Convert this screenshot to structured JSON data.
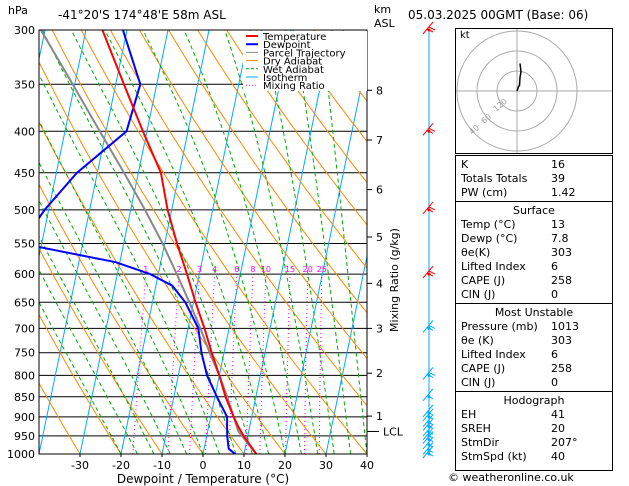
{
  "header": {
    "pressure_unit": "hPa",
    "location": "-41°20'S  174°48'E  58m  ASL",
    "height_unit": "km",
    "height_unit2": "ASL",
    "datetime": "05.03.2025  00GMT  (Base: 06)"
  },
  "legend": [
    {
      "label": "Temperature",
      "color": "#ff0000"
    },
    {
      "label": "Dewpoint",
      "color": "#0000ff"
    },
    {
      "label": "Parcel Trajectory",
      "color": "#888888"
    },
    {
      "label": "Dry Adiabat",
      "color": "#ff8800"
    },
    {
      "label": "Wet Adiabat",
      "color": "#00aa00"
    },
    {
      "label": "Isotherm",
      "color": "#00aaff"
    },
    {
      "label": "Mixing Ratio",
      "color": "#ff00ff"
    }
  ],
  "chart_data": {
    "type": "line",
    "title": "",
    "xlabel": "Dewpoint / Temperature (°C)",
    "ylabel": "hPa",
    "y2label": "Mixing Ratio (g/kg)",
    "xlim": [
      -40,
      40
    ],
    "ylim": [
      1000,
      300
    ],
    "x_ticks": [
      -30,
      -20,
      -10,
      0,
      10,
      20,
      30,
      40
    ],
    "pressure_levels": [
      300,
      350,
      400,
      450,
      500,
      550,
      600,
      650,
      700,
      750,
      800,
      850,
      900,
      950,
      1000
    ],
    "km_ticks": [
      {
        "label": "1",
        "p": 898
      },
      {
        "label": "2",
        "p": 795
      },
      {
        "label": "3",
        "p": 700
      },
      {
        "label": "4",
        "p": 616
      },
      {
        "label": "5",
        "p": 540
      },
      {
        "label": "6",
        "p": 472
      },
      {
        "label": "7",
        "p": 410
      },
      {
        "label": "8",
        "p": 356
      }
    ],
    "lcl": {
      "label": "LCL",
      "p": 938
    },
    "mixing_ratio_labels": [
      "1",
      "2",
      "3",
      "4",
      "6",
      "8",
      "10",
      "15",
      "20",
      "25"
    ],
    "mixing_ratio_values": [
      1,
      2,
      3,
      4,
      6,
      8,
      10,
      15,
      20,
      25
    ],
    "series": [
      {
        "name": "Temperature",
        "color": "#ff0000",
        "points": [
          [
            1000,
            13
          ],
          [
            975,
            11
          ],
          [
            950,
            9
          ],
          [
            925,
            7.2
          ],
          [
            900,
            5.6
          ],
          [
            850,
            2.6
          ],
          [
            800,
            0
          ],
          [
            750,
            -3
          ],
          [
            700,
            -6
          ],
          [
            650,
            -9.5
          ],
          [
            600,
            -13
          ],
          [
            550,
            -17
          ],
          [
            500,
            -21
          ],
          [
            450,
            -24.5
          ],
          [
            400,
            -31
          ],
          [
            350,
            -38
          ],
          [
            300,
            -46
          ]
        ]
      },
      {
        "name": "Dewpoint",
        "color": "#0000ff",
        "points": [
          [
            1000,
            7.8
          ],
          [
            985,
            6
          ],
          [
            950,
            5
          ],
          [
            925,
            4.5
          ],
          [
            900,
            4
          ],
          [
            850,
            0.5
          ],
          [
            800,
            -3
          ],
          [
            750,
            -5.5
          ],
          [
            700,
            -7.5
          ],
          [
            650,
            -12
          ],
          [
            620,
            -16
          ],
          [
            600,
            -22
          ],
          [
            580,
            -31
          ],
          [
            550,
            -55
          ],
          [
            500,
            -51
          ],
          [
            450,
            -45
          ],
          [
            400,
            -35
          ],
          [
            350,
            -34
          ],
          [
            300,
            -41
          ]
        ]
      },
      {
        "name": "Parcel Trajectory",
        "color": "#888888",
        "points": [
          [
            1000,
            13
          ],
          [
            938,
            7.5
          ],
          [
            900,
            5.6
          ],
          [
            850,
            3
          ],
          [
            800,
            0
          ],
          [
            750,
            -3.5
          ],
          [
            700,
            -7
          ],
          [
            650,
            -11
          ],
          [
            600,
            -15.5
          ],
          [
            550,
            -20.5
          ],
          [
            500,
            -26.5
          ],
          [
            450,
            -33.5
          ],
          [
            400,
            -41.5
          ],
          [
            350,
            -50.5
          ],
          [
            300,
            -61
          ]
        ]
      }
    ],
    "wind_barbs_p": [
      1000,
      990,
      975,
      960,
      950,
      940,
      925,
      915,
      900,
      890,
      850,
      800,
      700,
      600,
      500,
      400,
      300
    ]
  },
  "hodograph": {
    "unit_label": "kt",
    "ring_labels": [
      "40",
      "60",
      "120"
    ],
    "trace": [
      [
        0,
        0
      ],
      [
        3,
        8
      ],
      [
        5,
        10
      ],
      [
        6,
        25
      ],
      [
        8,
        35
      ],
      [
        6,
        50
      ]
    ]
  },
  "indices": {
    "rows": [
      {
        "label": "K",
        "value": "16"
      },
      {
        "label": "Totals Totals",
        "value": "39"
      },
      {
        "label": "PW (cm)",
        "value": "1.42"
      }
    ]
  },
  "surface": {
    "title": "Surface",
    "rows": [
      {
        "label": "Temp (°C)",
        "value": "13"
      },
      {
        "label": "Dewp (°C)",
        "value": "7.8"
      },
      {
        "label": "θe(K)",
        "value": "303"
      },
      {
        "label": "Lifted Index",
        "value": "6"
      },
      {
        "label": "CAPE (J)",
        "value": "258"
      },
      {
        "label": "CIN (J)",
        "value": "0"
      }
    ]
  },
  "most_unstable": {
    "title": "Most Unstable",
    "rows": [
      {
        "label": "Pressure (mb)",
        "value": "1013"
      },
      {
        "label": "θe (K)",
        "value": "303"
      },
      {
        "label": "Lifted Index",
        "value": "6"
      },
      {
        "label": "CAPE (J)",
        "value": "258"
      },
      {
        "label": "CIN (J)",
        "value": "0"
      }
    ]
  },
  "hodograph_table": {
    "title": "Hodograph",
    "rows": [
      {
        "label": "EH",
        "value": "41"
      },
      {
        "label": "SREH",
        "value": "20"
      },
      {
        "label": "StmDir",
        "value": "207°"
      },
      {
        "label": "StmSpd (kt)",
        "value": "40"
      }
    ]
  },
  "footer": {
    "copyright": "© weatheronline.co.uk"
  }
}
